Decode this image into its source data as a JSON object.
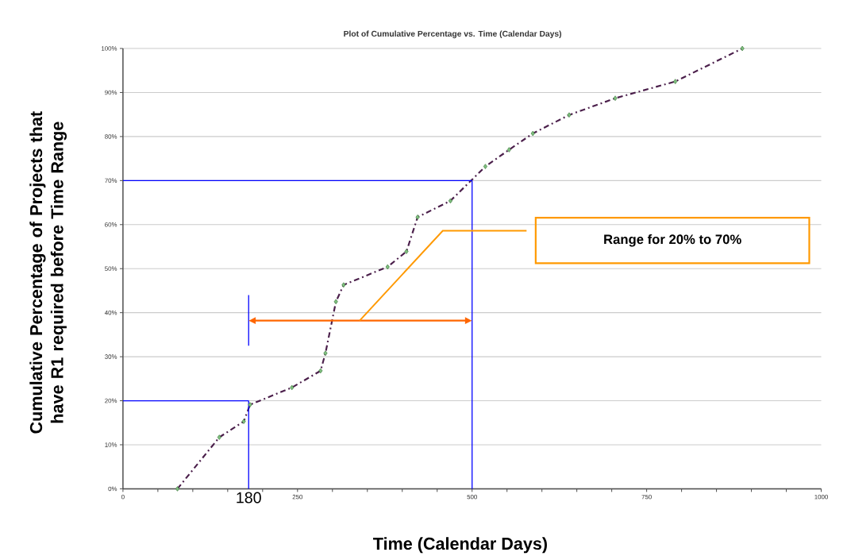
{
  "chart_data": {
    "type": "line",
    "title": "Plot of Cumulative Percentage vs. Time (Calendar Days)",
    "xlabel": "Time (Calendar Days)",
    "ylabel": "Cumulative Percentage of Projects that have  R1 required before Time Range",
    "x": [
      78,
      138,
      173,
      182,
      242,
      283,
      290,
      305,
      316,
      379,
      406,
      422,
      469,
      519,
      553,
      587,
      639,
      705,
      791,
      887
    ],
    "series": [
      {
        "color": "#4b1f4b",
        "values": [
          0,
          11.7,
          15.3,
          19.1,
          23.0,
          26.8,
          30.8,
          42.5,
          46.3,
          50.4,
          53.9,
          61.7,
          65.4,
          73.2,
          77.0,
          80.7,
          84.9,
          88.7,
          92.5,
          100
        ]
      }
    ],
    "marker": "diamond",
    "line_style": "dashed",
    "xlim": [
      0,
      1000
    ],
    "xticks": [
      0,
      {
        "value": 50,
        "label": null
      },
      {
        "value": 100,
        "label": null
      },
      {
        "value": 150,
        "label": null
      },
      {
        "value": 200,
        "label": null
      },
      250,
      {
        "value": 300,
        "label": null
      },
      {
        "value": 350,
        "label": null
      },
      {
        "value": 400,
        "label": null
      },
      {
        "value": 450,
        "label": null
      },
      500,
      {
        "value": 550,
        "label": null
      },
      {
        "value": 600,
        "label": null
      },
      {
        "value": 650,
        "label": null
      },
      {
        "value": 700,
        "label": null
      },
      750,
      {
        "value": 800,
        "label": null
      },
      {
        "value": 850,
        "label": null
      },
      {
        "value": 900,
        "label": null
      },
      {
        "value": 950,
        "label": null
      },
      1000
    ],
    "ylim": [
      0,
      100
    ],
    "yticks": [
      {
        "value": 0,
        "label": "0%"
      },
      {
        "value": 10,
        "label": "10%"
      },
      {
        "value": 20,
        "label": "20%"
      },
      {
        "value": 30,
        "label": "30%"
      },
      {
        "value": 40,
        "label": "40%"
      },
      {
        "value": 50,
        "label": "50%"
      },
      {
        "value": 60,
        "label": "60%"
      },
      {
        "value": 70,
        "label": "70%"
      },
      {
        "value": 80,
        "label": "80%"
      },
      {
        "value": 90,
        "label": "90%"
      },
      {
        "value": 100,
        "label": "100%"
      }
    ],
    "grid": "y",
    "ref_lines": [
      {
        "axis": "x",
        "value": 180,
        "label": "180",
        "color": "#0000ff"
      },
      {
        "axis": "x",
        "value": 500,
        "color": "#0000ff"
      },
      {
        "axis": "y",
        "value": 20,
        "color": "#0000ff"
      },
      {
        "axis": "y",
        "value": 70,
        "color": "#0000ff"
      }
    ],
    "annotations": [
      "Range for 20% to 70%"
    ]
  }
}
